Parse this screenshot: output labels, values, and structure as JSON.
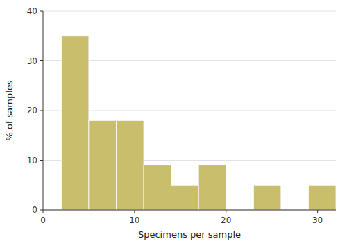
{
  "chart_data": {
    "type": "bar",
    "x": [
      2,
      5,
      8,
      11,
      14,
      17,
      23,
      29
    ],
    "width": 3,
    "values": [
      35,
      18,
      18,
      9,
      5,
      9,
      5,
      5
    ],
    "color": "#c8be6b",
    "xlabel": "Specimens per sample",
    "ylabel": "% of samples",
    "xlim": [
      0,
      32
    ],
    "xticks": [
      0,
      10,
      20,
      30
    ],
    "ylim": [
      0,
      40
    ],
    "yticks": [
      0,
      10,
      20,
      30,
      40
    ],
    "grid": true
  }
}
